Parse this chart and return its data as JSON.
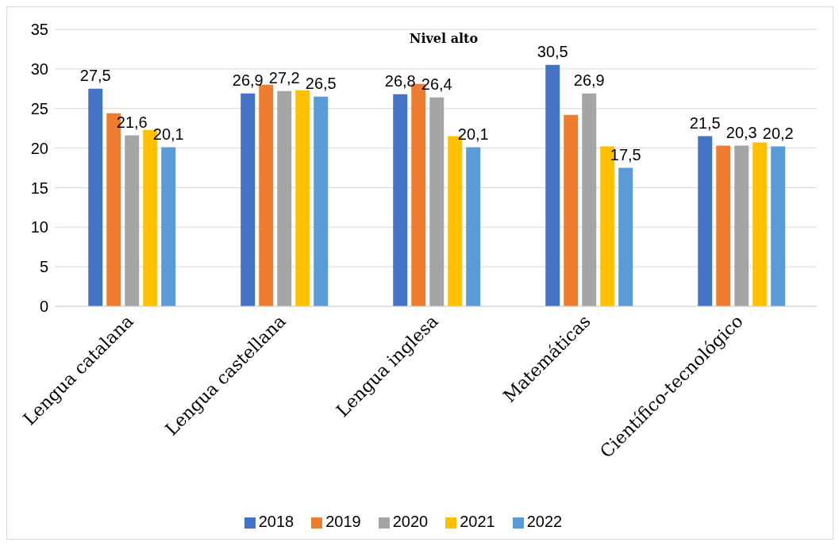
{
  "chart_data": {
    "type": "bar",
    "title": "Nivel alto",
    "categories": [
      "Lengua catalana",
      "Lengua castellana",
      "Lengua inglesa",
      "Matemáticas",
      "Científico-tecnológico"
    ],
    "series": [
      {
        "name": "2018",
        "color": "#4472c4",
        "values": [
          27.5,
          26.9,
          26.8,
          30.5,
          21.5
        ],
        "value_labels": [
          "27,5",
          "26,9",
          "26,8",
          "30,5",
          "21,5"
        ]
      },
      {
        "name": "2019",
        "color": "#ed7d31",
        "values": [
          24.4,
          28.0,
          28.1,
          24.2,
          20.3
        ]
      },
      {
        "name": "2020",
        "color": "#a5a5a5",
        "values": [
          21.6,
          27.2,
          26.4,
          26.9,
          20.3
        ],
        "value_labels": [
          "21,6",
          "27,2",
          "26,4",
          "26,9",
          "20,3"
        ]
      },
      {
        "name": "2021",
        "color": "#ffc000",
        "values": [
          22.3,
          27.3,
          21.5,
          20.2,
          20.7
        ]
      },
      {
        "name": "2022",
        "color": "#5b9bd5",
        "values": [
          20.1,
          26.5,
          20.1,
          17.5,
          20.2
        ],
        "value_labels": [
          "20,1",
          "26,5",
          "20,1",
          "17,5",
          "20,2"
        ]
      }
    ],
    "ylim": [
      0,
      35
    ],
    "yticks": [
      0,
      5,
      10,
      15,
      20,
      25,
      30,
      35
    ],
    "grid": "y",
    "legend": "bottom"
  }
}
